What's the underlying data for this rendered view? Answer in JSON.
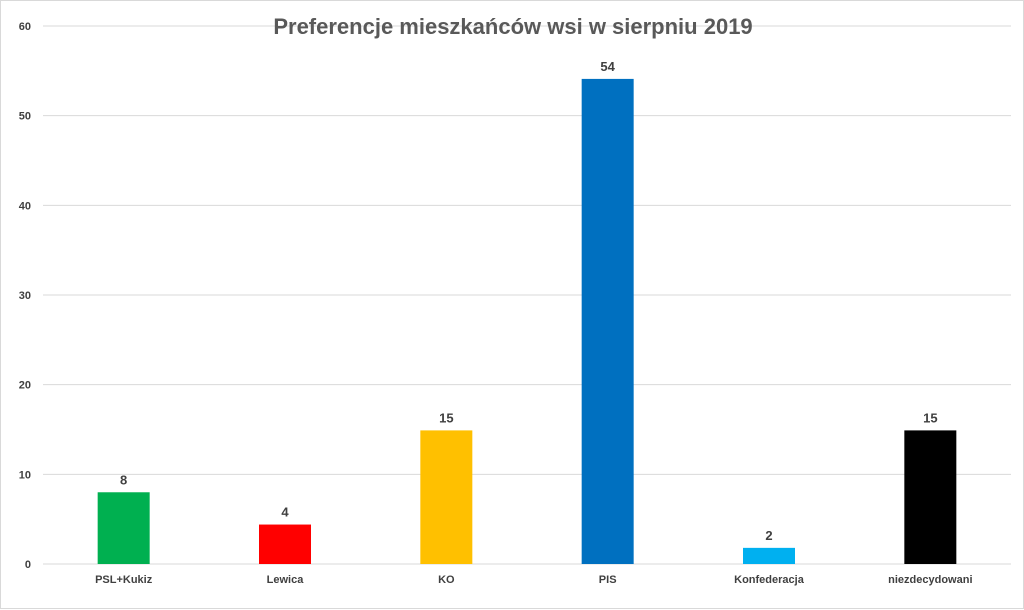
{
  "chart_data": {
    "type": "bar",
    "title": "Preferencje  mieszkańców wsi w sierpniu 2019",
    "xlabel": "",
    "ylabel": "",
    "ylim": [
      0,
      60
    ],
    "yticks": [
      0,
      10,
      20,
      30,
      40,
      50,
      60
    ],
    "grid": true,
    "legend": "none",
    "categories": [
      "PSL+Kukiz",
      "Lewica",
      "KO",
      "PIS",
      "Konfederacja",
      "niezdecydowani"
    ],
    "values": [
      8,
      4,
      15,
      54,
      2,
      15
    ],
    "value_labels": [
      "8",
      "4",
      "15",
      "54",
      "2",
      "15"
    ],
    "bar_values_exact": [
      8,
      4.4,
      14.9,
      54.1,
      1.8,
      14.9
    ],
    "colors": [
      "#00b050",
      "#ff0000",
      "#ffc000",
      "#0070c0",
      "#00b0f0",
      "#000000"
    ]
  }
}
